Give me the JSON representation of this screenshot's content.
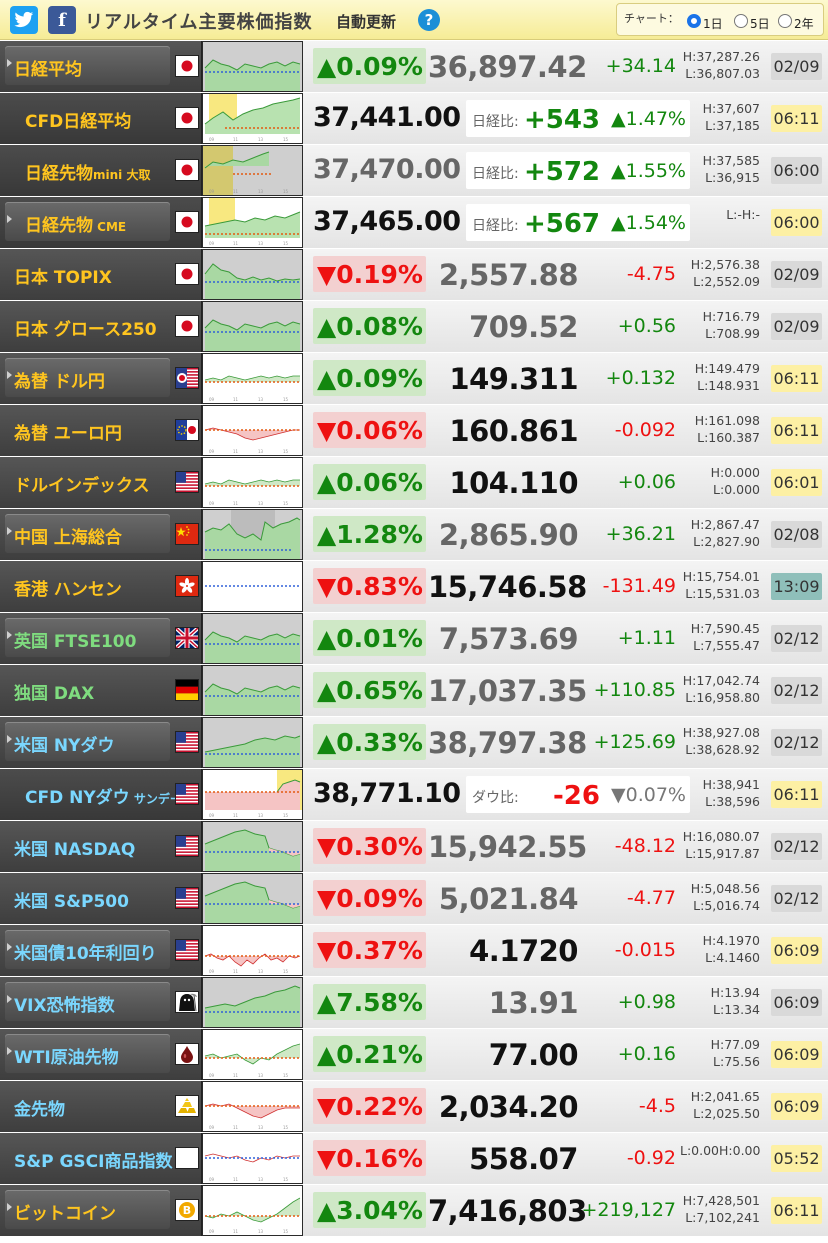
{
  "header": {
    "title": "リアルタイム主要株価指数",
    "auto_update": "自動更新",
    "help": "?",
    "chart_label": "チャート：",
    "ranges": [
      "1日",
      "5日",
      "2年"
    ],
    "selected_range": 0
  },
  "rows": [
    {
      "kind": "index",
      "name": "日経平均",
      "small": "",
      "color": "#ffc51f",
      "btn": true,
      "flag": "jp",
      "chart": "flat-up",
      "pct": "▲0.09%",
      "dir": "up",
      "price": "36,897.42",
      "dark": false,
      "chg": "+34.14",
      "high": "H:37,287.26",
      "low": "L:36,807.03",
      "date": "02/09",
      "dstyle": "grey"
    },
    {
      "kind": "cfd",
      "name": "CFD日経平均",
      "small": "",
      "color": "#ffc51f",
      "flag": "jp",
      "chart": "cfd-up",
      "price": "37,441.00",
      "dark": true,
      "label": "日経比:",
      "diff": "+543",
      "diffdir": "up",
      "pct": "▲1.47%",
      "high": "H:37,607",
      "low": "L:37,185",
      "date": "06:11",
      "dstyle": "live"
    },
    {
      "kind": "cfd",
      "name": "日経先物",
      "small": "mini 大取",
      "color": "#ffc51f",
      "flag": "jp",
      "chart": "fut",
      "price": "37,470.00",
      "dark": false,
      "label": "日経比:",
      "diff": "+572",
      "diffdir": "up",
      "pct": "▲1.55%",
      "high": "H:37,585",
      "low": "L:36,915",
      "date": "06:00",
      "dstyle": "grey"
    },
    {
      "kind": "cfd",
      "name": "日経先物",
      "small": " CME",
      "color": "#ffc51f",
      "btn": true,
      "flag": "jp",
      "chart": "cme",
      "price": "37,465.00",
      "dark": true,
      "label": "日経比:",
      "diff": "+567",
      "diffdir": "up",
      "pct": "▲1.54%",
      "high": "L:-H:-",
      "low": "",
      "date": "06:00",
      "dstyle": "live"
    },
    {
      "kind": "index",
      "name": "日本 TOPIX",
      "small": "",
      "color": "#ffc51f",
      "flag": "jp",
      "chart": "down",
      "pct": "▼0.19%",
      "dir": "down",
      "price": "2,557.88",
      "dark": false,
      "chg": "-4.75",
      "high": "H:2,576.38",
      "low": "L:2,552.09",
      "date": "02/09",
      "dstyle": "grey"
    },
    {
      "kind": "index",
      "name": "日本 グロース250",
      "small": "",
      "color": "#ffc51f",
      "flag": "jp",
      "chart": "flat-up",
      "pct": "▲0.08%",
      "dir": "up",
      "price": "709.52",
      "dark": false,
      "chg": "+0.56",
      "high": "H:716.79",
      "low": "L:708.99",
      "date": "02/09",
      "dstyle": "grey"
    },
    {
      "kind": "index",
      "name": "為替 ドル円",
      "small": "",
      "color": "#ffc51f",
      "btn": true,
      "flag": "jpus",
      "chart": "fx-up",
      "pct": "▲0.09%",
      "dir": "up",
      "price": "149.311",
      "dark": true,
      "chg": "+0.132",
      "high": "H:149.479",
      "low": "L:148.931",
      "date": "06:11",
      "dstyle": "live"
    },
    {
      "kind": "index",
      "name": "為替 ユーロ円",
      "small": "",
      "color": "#ffc51f",
      "flag": "eujp",
      "chart": "fx-down",
      "pct": "▼0.06%",
      "dir": "down",
      "price": "160.861",
      "dark": true,
      "chg": "-0.092",
      "high": "H:161.098",
      "low": "L:160.387",
      "date": "06:11",
      "dstyle": "live"
    },
    {
      "kind": "index",
      "name": "ドルインデックス",
      "small": "",
      "color": "#ffc51f",
      "flag": "us",
      "chart": "fx-up",
      "pct": "▲0.06%",
      "dir": "up",
      "price": "104.110",
      "dark": true,
      "chg": "+0.06",
      "high": "H:0.000",
      "low": "L:0.000",
      "date": "06:01",
      "dstyle": "live"
    },
    {
      "kind": "index",
      "name": "中国 上海総合",
      "small": "",
      "color": "#ffc51f",
      "btn": true,
      "flag": "cn",
      "chart": "cn",
      "pct": "▲1.28%",
      "dir": "up",
      "price": "2,865.90",
      "dark": false,
      "chg": "+36.21",
      "high": "H:2,867.47",
      "low": "L:2,827.90",
      "date": "02/08",
      "dstyle": "grey"
    },
    {
      "kind": "index",
      "name": "香港 ハンセン",
      "small": "",
      "color": "#ffc51f",
      "flag": "hk",
      "chart": "empty",
      "pct": "▼0.83%",
      "dir": "down",
      "price": "15,746.58",
      "dark": true,
      "chg": "-131.49",
      "high": "H:15,754.01",
      "low": "L:15,531.03",
      "date": "13:09",
      "dstyle": "teal"
    },
    {
      "kind": "index",
      "name": "英国 FTSE100",
      "small": "",
      "color": "#7fdc7f",
      "btn": true,
      "flag": "uk",
      "chart": "flat-up",
      "pct": "▲0.01%",
      "dir": "up",
      "price": "7,573.69",
      "dark": false,
      "chg": "+1.11",
      "high": "H:7,590.45",
      "low": "L:7,555.47",
      "date": "02/12",
      "dstyle": "grey"
    },
    {
      "kind": "index",
      "name": "独国 DAX",
      "small": "",
      "color": "#7fdc7f",
      "flag": "de",
      "chart": "flat-up",
      "pct": "▲0.65%",
      "dir": "up",
      "price": "17,037.35",
      "dark": false,
      "chg": "+110.85",
      "high": "H:17,042.74",
      "low": "L:16,958.80",
      "date": "02/12",
      "dstyle": "grey"
    },
    {
      "kind": "index",
      "name": "米国 NYダウ",
      "small": "",
      "color": "#7ad7ff",
      "btn": true,
      "flag": "us",
      "chart": "rise",
      "pct": "▲0.33%",
      "dir": "up",
      "price": "38,797.38",
      "dark": false,
      "chg": "+125.69",
      "high": "H:38,927.08",
      "low": "L:38,628.92",
      "date": "02/12",
      "dstyle": "grey"
    },
    {
      "kind": "cfd",
      "name": "CFD NYダウ",
      "small": " サンデー",
      "color": "#7ad7ff",
      "flag": "us",
      "chart": "cfd-down",
      "price": "38,771.10",
      "dark": true,
      "label": "ダウ比:",
      "diff": "-26",
      "diffdir": "down",
      "pct": "▼0.07%",
      "pctdir": "grey",
      "high": "H:38,941",
      "low": "L:38,596",
      "date": "06:11",
      "dstyle": "live"
    },
    {
      "kind": "index",
      "name": "米国 NASDAQ",
      "small": "",
      "color": "#7ad7ff",
      "flag": "us",
      "chart": "nas",
      "pct": "▼0.30%",
      "dir": "down",
      "price": "15,942.55",
      "dark": false,
      "chg": "-48.12",
      "high": "H:16,080.07",
      "low": "L:15,917.87",
      "date": "02/12",
      "dstyle": "grey"
    },
    {
      "kind": "index",
      "name": "米国 S&P500",
      "small": "",
      "color": "#7ad7ff",
      "flag": "us",
      "chart": "nas",
      "pct": "▼0.09%",
      "dir": "down",
      "price": "5,021.84",
      "dark": false,
      "chg": "-4.77",
      "high": "H:5,048.56",
      "low": "L:5,016.74",
      "date": "02/12",
      "dstyle": "grey"
    },
    {
      "kind": "index",
      "name": "米国債10年利回り",
      "small": "",
      "color": "#7ad7ff",
      "btn": true,
      "flag": "us",
      "chart": "bond",
      "pct": "▼0.37%",
      "dir": "down",
      "price": "4.1720",
      "dark": true,
      "chg": "-0.015",
      "high": "H:4.1970",
      "low": "L:4.1460",
      "date": "06:09",
      "dstyle": "live"
    },
    {
      "kind": "index",
      "name": "VIX恐怖指数",
      "small": "",
      "color": "#7ad7ff",
      "btn": true,
      "flag": "vix",
      "chart": "vix",
      "pct": "▲7.58%",
      "dir": "up",
      "price": "13.91",
      "dark": false,
      "chg": "+0.98",
      "high": "H:13.94",
      "low": "L:13.34",
      "date": "06:09",
      "dstyle": "grey"
    },
    {
      "kind": "index",
      "name": "WTI原油先物",
      "small": "",
      "color": "#7ad7ff",
      "btn": true,
      "flag": "oil",
      "chart": "wti",
      "pct": "▲0.21%",
      "dir": "up",
      "price": "77.00",
      "dark": true,
      "chg": "+0.16",
      "high": "H:77.09",
      "low": "L:75.56",
      "date": "06:09",
      "dstyle": "live"
    },
    {
      "kind": "index",
      "name": "金先物",
      "small": "",
      "color": "#7ad7ff",
      "flag": "gold",
      "chart": "gold",
      "pct": "▼0.22%",
      "dir": "down",
      "price": "2,034.20",
      "dark": true,
      "chg": "-4.5",
      "high": "H:2,041.65",
      "low": "L:2,025.50",
      "date": "06:09",
      "dstyle": "live"
    },
    {
      "kind": "index",
      "name": "S&P GSCI商品指数",
      "small": "",
      "color": "#7ad7ff",
      "flag": "none",
      "chart": "gsci",
      "pct": "▼0.16%",
      "dir": "down",
      "price": "558.07",
      "dark": true,
      "chg": "-0.92",
      "high": "L:0.00H:0.00",
      "low": "",
      "date": "05:52",
      "dstyle": "live"
    },
    {
      "kind": "index",
      "name": "ビットコイン",
      "small": "",
      "color": "#ffc51f",
      "btn": true,
      "flag": "btc",
      "chart": "btc",
      "pct": "▲3.04%",
      "dir": "up",
      "price": "7,416,803",
      "dark": true,
      "chg": "+219,127",
      "high": "H:7,428,501",
      "low": "L:7,102,241",
      "date": "06:11",
      "dstyle": "live"
    }
  ]
}
